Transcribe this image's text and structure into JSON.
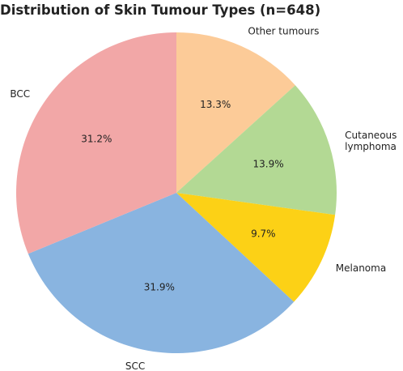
{
  "chart_data": {
    "type": "pie",
    "title": "Distribution of Skin Tumour Types (n=648)",
    "categories": [
      "Other tumours",
      "Cutaneous\nlymphoma",
      "Melanoma",
      "SCC",
      "BCC"
    ],
    "values": [
      13.3,
      13.9,
      9.7,
      31.9,
      31.2
    ],
    "value_labels": [
      "13.3%",
      "13.9%",
      "9.7%",
      "31.9%",
      "31.2%"
    ],
    "colors": [
      "#fccb98",
      "#b3d994",
      "#fcd116",
      "#89b4e0",
      "#f2a7a7"
    ]
  }
}
